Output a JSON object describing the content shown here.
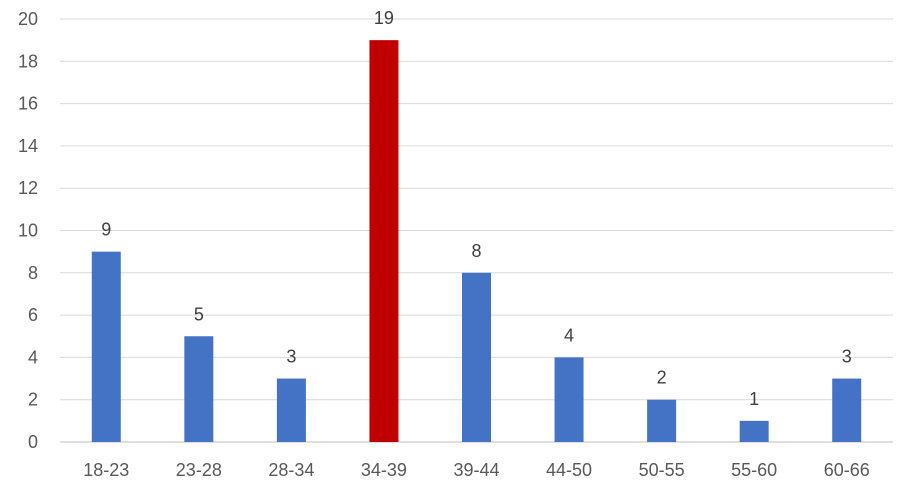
{
  "chart_data": {
    "type": "bar",
    "title": "",
    "xlabel": "",
    "ylabel": "",
    "categories": [
      "18-23",
      "23-28",
      "28-34",
      "34-39",
      "39-44",
      "44-50",
      "50-55",
      "55-60",
      "60-66"
    ],
    "values": [
      9,
      5,
      3,
      19,
      8,
      4,
      2,
      1,
      3
    ],
    "ylim": [
      0,
      20
    ],
    "yticks": [
      0,
      2,
      4,
      6,
      8,
      10,
      12,
      14,
      16,
      18,
      20
    ],
    "grid": true,
    "legend": "none",
    "colors": {
      "default": "#4472C4",
      "highlight": "#C00000",
      "grid": "#D9D9D9",
      "axis": "#BFBFBF"
    },
    "highlight_categories": [
      "34-39"
    ],
    "data_labels": [
      "9",
      "5",
      "3",
      "19",
      "8",
      "4",
      "2",
      "1",
      "3"
    ]
  }
}
